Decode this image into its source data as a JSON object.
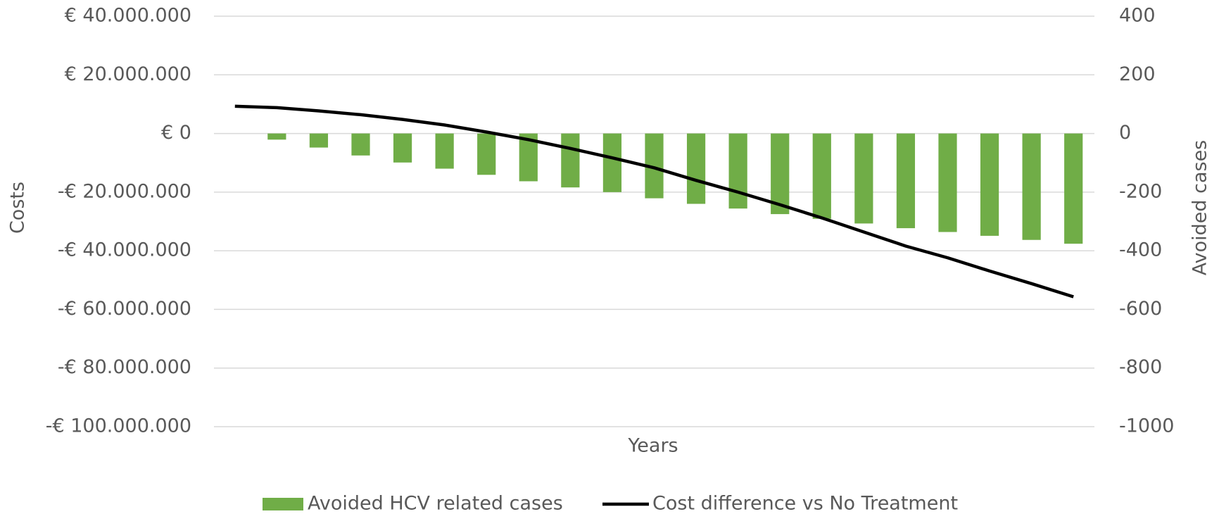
{
  "chart_data": {
    "type": "bar-line",
    "y_label": "Costs",
    "y2_label": "Avoided cases",
    "x_label": "Years",
    "categories": [
      null,
      null,
      null,
      null,
      null,
      null,
      null,
      null,
      null,
      null,
      null,
      null,
      null,
      null,
      null,
      null,
      null,
      null,
      null,
      null,
      null
    ],
    "series": [
      {
        "name": "Avoided HCV related cases",
        "type": "bar",
        "axis": "y2",
        "color": "#70ad47",
        "values": [
          0,
          -21,
          -48,
          -75,
          -99,
          -120,
          -141,
          -163,
          -184,
          -200,
          -221,
          -240,
          -256,
          -275,
          -291,
          -307,
          -323,
          -336,
          -349,
          -363,
          -376
        ]
      },
      {
        "name": "Cost difference vs No Treatment",
        "type": "line",
        "axis": "y",
        "color": "#000000",
        "values": [
          9300000,
          8800000,
          7700000,
          6400000,
          4800000,
          2900000,
          500000,
          -2100000,
          -5100000,
          -8300000,
          -11700000,
          -16000000,
          -20000000,
          -24300000,
          -28800000,
          -33600000,
          -38400000,
          -42400000,
          -46900000,
          -51200000,
          -55700000
        ]
      }
    ],
    "ylim": [
      -100000000,
      40000000
    ],
    "yticks": [
      {
        "value": 40000000,
        "label": "€ 40.000.000"
      },
      {
        "value": 20000000,
        "label": "€ 20.000.000"
      },
      {
        "value": 0,
        "label": "€ 0"
      },
      {
        "value": -20000000,
        "label": "-€ 20.000.000"
      },
      {
        "value": -40000000,
        "label": "-€ 40.000.000"
      },
      {
        "value": -60000000,
        "label": "-€ 60.000.000"
      },
      {
        "value": -80000000,
        "label": "-€ 80.000.000"
      },
      {
        "value": -100000000,
        "label": "-€ 100.000.000"
      }
    ],
    "y2lim": [
      -1000,
      400
    ],
    "y2ticks": [
      400,
      200,
      0,
      -200,
      -400,
      -600,
      -800,
      -1000
    ],
    "grid": true,
    "tick_color": "#595959",
    "negative_tick_color": "#ff0000",
    "legend": "bottom"
  }
}
